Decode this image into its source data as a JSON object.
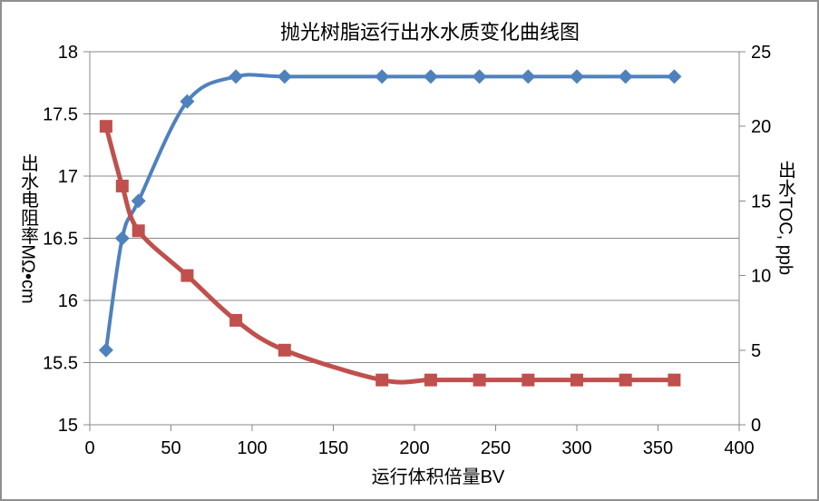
{
  "frame": {
    "background": "#ffffff",
    "border_color": "#8f8f8f"
  },
  "chart_data": {
    "type": "line",
    "title": "抛光树脂运行出水水质变化曲线图",
    "x_axis": {
      "label": "运行体积倍量BV",
      "min": 0,
      "max": 400,
      "ticks": [
        0,
        50,
        100,
        150,
        200,
        250,
        300,
        350,
        400
      ]
    },
    "y_axis_left": {
      "label": "出水电阻率MΩ•cm",
      "min": 15,
      "max": 18,
      "ticks": [
        15,
        15.5,
        16,
        16.5,
        17,
        17.5,
        18
      ]
    },
    "y_axis_right": {
      "label": "出水TOC, ppb",
      "min": 0,
      "max": 25,
      "ticks": [
        0,
        5,
        10,
        15,
        20,
        25
      ]
    },
    "x": [
      10,
      20,
      30,
      60,
      90,
      120,
      180,
      210,
      240,
      270,
      300,
      330,
      360
    ],
    "series": [
      {
        "name": "出水电阻率MΩ•cm",
        "axis": "left",
        "color": "#4F81BD",
        "marker": "diamond",
        "line_width": 4,
        "values": [
          15.6,
          16.5,
          16.8,
          17.6,
          17.8,
          17.8,
          17.8,
          17.8,
          17.8,
          17.8,
          17.8,
          17.8,
          17.8
        ]
      },
      {
        "name": "出水TOC, ppb",
        "axis": "right",
        "color": "#C0504D",
        "marker": "square",
        "line_width": 5,
        "values": [
          20,
          16,
          13,
          10,
          7,
          5,
          3,
          3,
          3,
          3,
          3,
          3,
          3
        ]
      }
    ],
    "grid": {
      "color": "#898989",
      "lines": "horizontal"
    },
    "text_color": "#000000",
    "smooth": true,
    "legend": "none"
  }
}
